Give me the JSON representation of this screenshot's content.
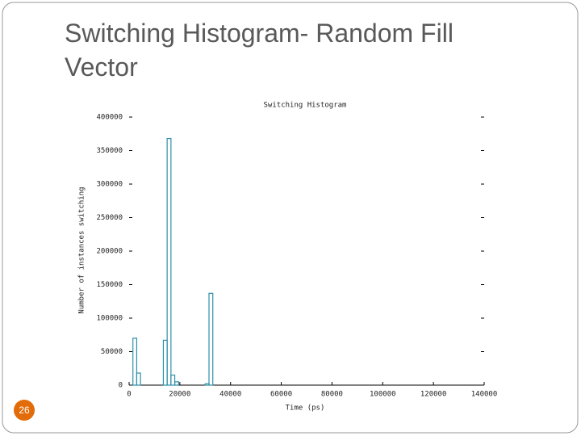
{
  "slide_title": "Switching Histogram- Random Fill Vector",
  "slide_number": "26",
  "chart_data": {
    "type": "histogram",
    "title": "Switching Histogram",
    "xlabel": "Time (ps)",
    "ylabel": "Number of instances switching",
    "bins": [
      0,
      1500,
      3000,
      4500,
      6000,
      7500,
      9000,
      10500,
      12000,
      13500,
      15000,
      16500,
      18000,
      19500,
      21000,
      22500,
      24000,
      25500,
      27000,
      28500,
      30000,
      31500,
      33000,
      34500
    ],
    "counts": [
      0,
      70000,
      18000,
      0,
      0,
      0,
      0,
      0,
      0,
      67000,
      368000,
      15000,
      5000,
      0,
      0,
      0,
      0,
      0,
      0,
      0,
      2000,
      137000,
      0
    ],
    "color": "#2f8fa8",
    "xlim": [
      0,
      140000
    ],
    "xticks": [
      0,
      20000,
      40000,
      60000,
      80000,
      100000,
      120000,
      140000
    ],
    "ylim": [
      0,
      400000
    ],
    "yticks": [
      0,
      50000,
      100000,
      150000,
      200000,
      250000,
      300000,
      350000,
      400000
    ],
    "grid": false
  }
}
